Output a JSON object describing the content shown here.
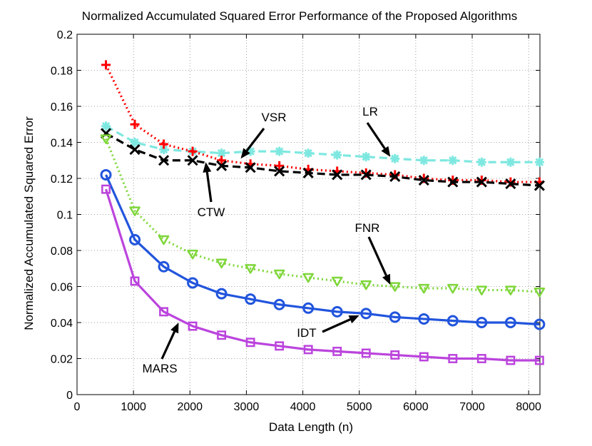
{
  "chart_data": {
    "type": "line",
    "title": "Normalized Accumulated Squared Error Performance of the Proposed Algorithms",
    "xlabel": "Data Length (n)",
    "ylabel": "Normalized Accumulated Squared Error",
    "xlim": [
      0,
      8200
    ],
    "ylim": [
      0,
      0.2
    ],
    "grid": true,
    "xticks": [
      0,
      1000,
      2000,
      3000,
      4000,
      5000,
      6000,
      7000,
      8000
    ],
    "yticks": [
      0,
      0.02,
      0.04,
      0.06,
      0.08,
      0.1,
      0.12,
      0.14,
      0.16,
      0.18,
      0.2
    ],
    "xtick_labels": [
      "0",
      "1000",
      "2000",
      "3000",
      "4000",
      "5000",
      "6000",
      "7000",
      "8000"
    ],
    "ytick_labels": [
      "0",
      "0.02",
      "0.04",
      "0.06",
      "0.08",
      "0.1",
      "0.12",
      "0.14",
      "0.16",
      "0.18",
      "0.2"
    ],
    "x": [
      512,
      1024,
      1536,
      2048,
      2560,
      3072,
      3584,
      4096,
      4608,
      5120,
      5632,
      6144,
      6656,
      7168,
      7680,
      8192
    ],
    "series": [
      {
        "name": "LR",
        "color": "#7ee8e0",
        "line": "dashed",
        "marker": "asterisk",
        "values": [
          0.149,
          0.14,
          0.136,
          0.135,
          0.134,
          0.135,
          0.135,
          0.134,
          0.133,
          0.132,
          0.131,
          0.13,
          0.13,
          0.129,
          0.129,
          0.129
        ]
      },
      {
        "name": "VSR",
        "color": "#ff0000",
        "line": "dotted",
        "marker": "plus",
        "values": [
          0.183,
          0.15,
          0.139,
          0.135,
          0.13,
          0.128,
          0.127,
          0.125,
          0.124,
          0.123,
          0.122,
          0.12,
          0.119,
          0.119,
          0.118,
          0.118
        ]
      },
      {
        "name": "CTW",
        "color": "#000000",
        "line": "dashed",
        "marker": "x",
        "values": [
          0.145,
          0.136,
          0.13,
          0.13,
          0.127,
          0.126,
          0.124,
          0.123,
          0.122,
          0.122,
          0.121,
          0.119,
          0.118,
          0.118,
          0.117,
          0.116
        ]
      },
      {
        "name": "FNR",
        "color": "#7fd63a",
        "line": "dotted",
        "marker": "triangle-down",
        "values": [
          0.142,
          0.102,
          0.086,
          0.078,
          0.073,
          0.07,
          0.067,
          0.065,
          0.063,
          0.061,
          0.06,
          0.059,
          0.059,
          0.058,
          0.058,
          0.057
        ]
      },
      {
        "name": "IDT",
        "color": "#2255dd",
        "line": "solid",
        "marker": "circle",
        "values": [
          0.122,
          0.086,
          0.071,
          0.062,
          0.056,
          0.053,
          0.05,
          0.048,
          0.046,
          0.045,
          0.043,
          0.042,
          0.041,
          0.04,
          0.04,
          0.039
        ]
      },
      {
        "name": "MARS",
        "color": "#bb44dd",
        "line": "solid",
        "marker": "square",
        "values": [
          0.114,
          0.063,
          0.046,
          0.038,
          0.033,
          0.029,
          0.027,
          0.025,
          0.024,
          0.023,
          0.022,
          0.021,
          0.02,
          0.02,
          0.019,
          0.019
        ]
      }
    ],
    "annotations": [
      {
        "text": "VSR",
        "arrow_to": [
          2900,
          0.131
        ]
      },
      {
        "text": "LR",
        "arrow_to": [
          5550,
          0.132
        ]
      },
      {
        "text": "CTW",
        "arrow_to": [
          2280,
          0.129
        ]
      },
      {
        "text": "FNR",
        "arrow_to": [
          5550,
          0.061
        ]
      },
      {
        "text": "IDT",
        "arrow_to": [
          5000,
          0.044
        ]
      },
      {
        "text": "MARS",
        "arrow_to": [
          1800,
          0.04
        ]
      }
    ]
  }
}
